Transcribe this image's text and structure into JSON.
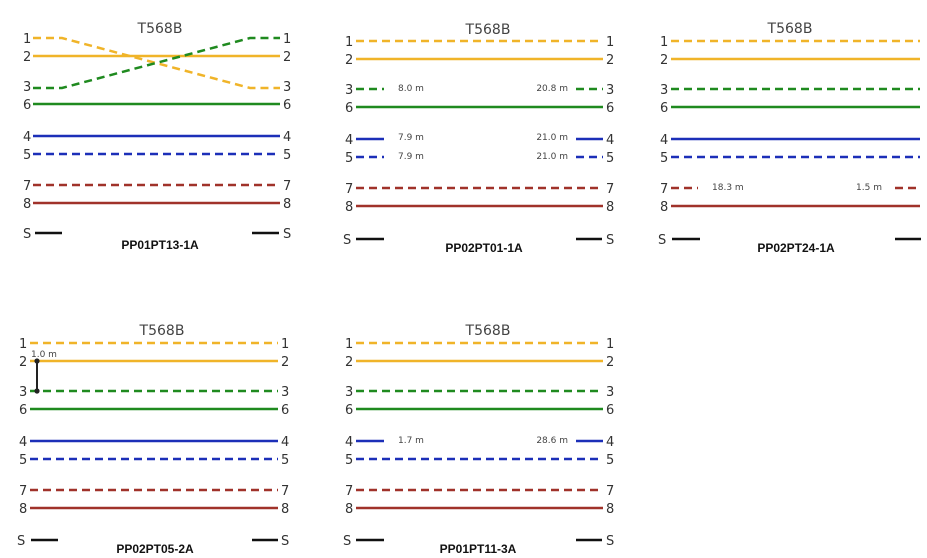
{
  "colors": {
    "orange": "#f0b429",
    "green": "#1f8a1f",
    "blue": "#1c2fb8",
    "brown": "#a0322a",
    "shield": "#111111",
    "short": "#222222"
  },
  "panels": [
    {
      "standard": "T568B",
      "name": "PP01PT13-1A",
      "fault": "crossed pair 1-3",
      "pins_left": [
        "1",
        "2",
        "3",
        "6",
        "4",
        "5",
        "7",
        "8",
        "S"
      ],
      "pins_right": [
        "1",
        "2",
        "3",
        "6",
        "4",
        "5",
        "7",
        "8",
        "S"
      ],
      "lengths": []
    },
    {
      "standard": "T568B",
      "name": "PP02PT01-1A",
      "fault": "opens",
      "pins_left": [
        "1",
        "2",
        "3",
        "6",
        "4",
        "5",
        "7",
        "8",
        "S"
      ],
      "pins_right": [
        "1",
        "2",
        "3",
        "6",
        "4",
        "5",
        "7",
        "8",
        "S"
      ],
      "lengths": [
        {
          "pin": "3",
          "near": "8.0 m",
          "far": "20.8 m"
        },
        {
          "pin": "4",
          "near": "7.9 m",
          "far": "21.0 m"
        },
        {
          "pin": "5",
          "near": "7.9 m",
          "far": "21.0 m"
        }
      ]
    },
    {
      "standard": "T568B",
      "name": "PP02PT24-1A",
      "fault": "open",
      "pins_left": [
        "1",
        "2",
        "3",
        "6",
        "4",
        "5",
        "7",
        "8",
        "S"
      ],
      "pins_right": [
        "1",
        "2",
        "3",
        "6",
        "4",
        "5",
        "7",
        "8",
        "S"
      ],
      "lengths": [
        {
          "pin": "7",
          "near": "18.3 m",
          "far": "1.5 m"
        }
      ]
    },
    {
      "standard": "T568B",
      "name": "PP02PT05-2A",
      "fault": "short 2-3",
      "pins_left": [
        "1",
        "2",
        "3",
        "6",
        "4",
        "5",
        "7",
        "8",
        "S"
      ],
      "pins_right": [
        "1",
        "2",
        "3",
        "6",
        "4",
        "5",
        "7",
        "8",
        "S"
      ],
      "short_label": "1.0 m",
      "lengths": []
    },
    {
      "standard": "T568B",
      "name": "PP01PT11-3A",
      "fault": "open",
      "pins_left": [
        "1",
        "2",
        "3",
        "6",
        "4",
        "5",
        "7",
        "8",
        "S"
      ],
      "pins_right": [
        "1",
        "2",
        "3",
        "6",
        "4",
        "5",
        "7",
        "8",
        "S"
      ],
      "lengths": [
        {
          "pin": "4",
          "near": "1.7 m",
          "far": "28.6 m"
        }
      ]
    }
  ]
}
